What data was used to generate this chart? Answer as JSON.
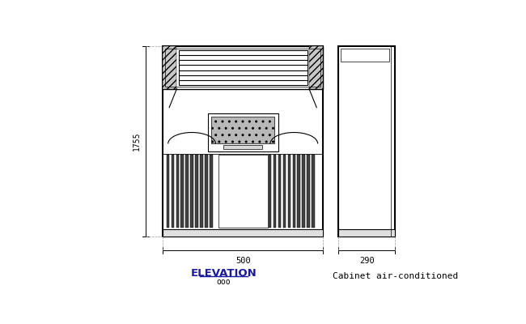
{
  "bg_color": "#ffffff",
  "line_color": "#000000",
  "title": "ELEVATION",
  "subtitle": "ooo",
  "label_right": "Cabinet air-conditioned",
  "dim_height": "1755",
  "dim_width_front": "500",
  "dim_width_side": "290"
}
